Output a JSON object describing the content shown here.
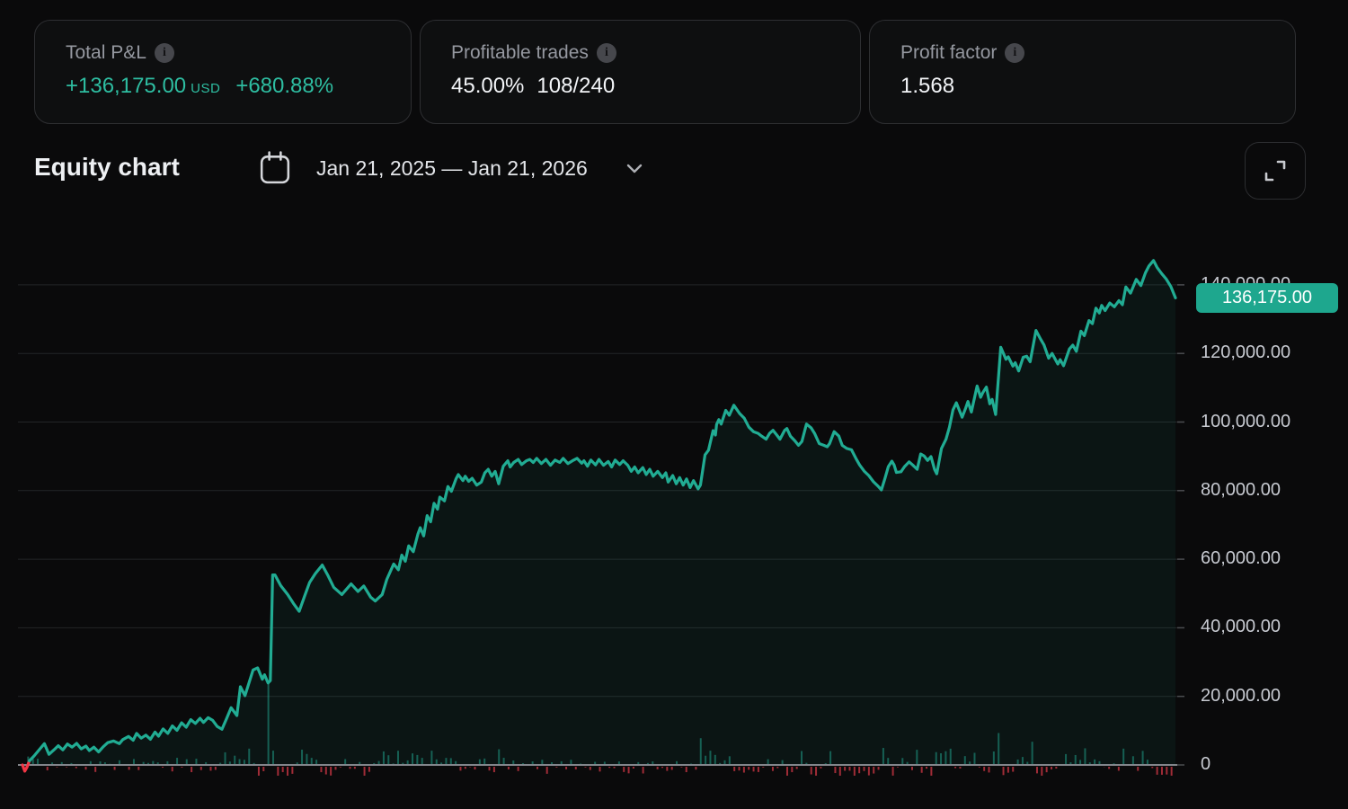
{
  "stats_cards": [
    {
      "label": "Total P&L",
      "value": "+136,175.00",
      "currency": "USD",
      "percent": "+680.88%"
    },
    {
      "label": "Profitable trades",
      "value": "45.00%",
      "ratio": "108/240"
    },
    {
      "label": "Profit factor",
      "value": "1.568"
    }
  ],
  "chart_header": {
    "title": "Equity chart",
    "date_range": "Jan 21, 2025 — Jan 21, 2026"
  },
  "chart_data": {
    "type": "line",
    "title": "Equity chart",
    "x_range": [
      "Jan 21, 2025",
      "Jan 21, 2026"
    ],
    "grid": true,
    "legend": "none",
    "y_axis": {
      "side": "right",
      "ticks": [
        {
          "value": 140000,
          "label": "140,000.00"
        },
        {
          "value": 120000,
          "label": "120,000.00"
        },
        {
          "value": 100000,
          "label": "100,000.00"
        },
        {
          "value": 80000,
          "label": "80,000.00"
        },
        {
          "value": 60000,
          "label": "60,000.00"
        },
        {
          "value": 40000,
          "label": "40,000.00"
        },
        {
          "value": 20000,
          "label": "20,000.00"
        },
        {
          "value": 0,
          "label": "0"
        }
      ]
    },
    "last_value": 136175,
    "last_value_label": "136,175.00",
    "colors": {
      "line": "#21ac93",
      "area": "rgba(34,171,148,0.07)",
      "badge": "#1ea78e",
      "negative": "#f23645",
      "bar_up": "rgba(34,171,148,0.5)",
      "bar_down": "rgba(176,48,60,0.9)",
      "grid": "#232527",
      "zero_line": "#a9acb3",
      "tick": "#4a4c50",
      "label": "#c7cad1"
    },
    "equity_curve": {
      "units": "USD",
      "red_prefix_points": 4,
      "points": [
        [
          0,
          0
        ],
        [
          0.002,
          -1800
        ],
        [
          0.004,
          -600
        ],
        [
          0.006,
          1200
        ],
        [
          0.01,
          2600
        ],
        [
          0.016,
          5000
        ],
        [
          0.019,
          6200
        ],
        [
          0.023,
          3100
        ],
        [
          0.027,
          4300
        ],
        [
          0.031,
          5600
        ],
        [
          0.035,
          4400
        ],
        [
          0.039,
          6100
        ],
        [
          0.043,
          5200
        ],
        [
          0.047,
          6300
        ],
        [
          0.051,
          4700
        ],
        [
          0.055,
          5500
        ],
        [
          0.058,
          4200
        ],
        [
          0.062,
          5200
        ],
        [
          0.066,
          3800
        ],
        [
          0.07,
          5300
        ],
        [
          0.074,
          6500
        ],
        [
          0.079,
          7000
        ],
        [
          0.084,
          6200
        ],
        [
          0.087,
          7400
        ],
        [
          0.092,
          8300
        ],
        [
          0.096,
          7200
        ],
        [
          0.099,
          9200
        ],
        [
          0.103,
          7800
        ],
        [
          0.107,
          8700
        ],
        [
          0.111,
          7500
        ],
        [
          0.115,
          9600
        ],
        [
          0.118,
          8400
        ],
        [
          0.122,
          10500
        ],
        [
          0.126,
          9200
        ],
        [
          0.13,
          11400
        ],
        [
          0.134,
          10100
        ],
        [
          0.138,
          12300
        ],
        [
          0.142,
          11000
        ],
        [
          0.146,
          13200
        ],
        [
          0.15,
          12100
        ],
        [
          0.154,
          13600
        ],
        [
          0.157,
          12400
        ],
        [
          0.161,
          13800
        ],
        [
          0.165,
          13000
        ],
        [
          0.169,
          11200
        ],
        [
          0.173,
          10400
        ],
        [
          0.177,
          13500
        ],
        [
          0.181,
          16700
        ],
        [
          0.186,
          14400
        ],
        [
          0.189,
          22800
        ],
        [
          0.193,
          20200
        ],
        [
          0.2,
          27700
        ],
        [
          0.204,
          28300
        ],
        [
          0.208,
          25000
        ],
        [
          0.21,
          26300
        ],
        [
          0.213,
          23900
        ],
        [
          0.215,
          24600
        ],
        [
          0.217,
          55400
        ],
        [
          0.219,
          55400
        ],
        [
          0.224,
          52300
        ],
        [
          0.23,
          49700
        ],
        [
          0.235,
          47100
        ],
        [
          0.24,
          44800
        ],
        [
          0.245,
          49500
        ],
        [
          0.249,
          53200
        ],
        [
          0.254,
          55800
        ],
        [
          0.26,
          58300
        ],
        [
          0.265,
          55200
        ],
        [
          0.27,
          51800
        ],
        [
          0.277,
          49700
        ],
        [
          0.285,
          52800
        ],
        [
          0.291,
          50600
        ],
        [
          0.296,
          52200
        ],
        [
          0.302,
          48900
        ],
        [
          0.306,
          47800
        ],
        [
          0.312,
          49700
        ],
        [
          0.316,
          54100
        ],
        [
          0.322,
          58600
        ],
        [
          0.326,
          56900
        ],
        [
          0.329,
          61200
        ],
        [
          0.332,
          59400
        ],
        [
          0.335,
          63900
        ],
        [
          0.339,
          62200
        ],
        [
          0.343,
          67400
        ],
        [
          0.345,
          69200
        ],
        [
          0.348,
          66800
        ],
        [
          0.351,
          72700
        ],
        [
          0.354,
          70900
        ],
        [
          0.357,
          76300
        ],
        [
          0.36,
          74600
        ],
        [
          0.362,
          78100
        ],
        [
          0.366,
          77000
        ],
        [
          0.369,
          81200
        ],
        [
          0.372,
          79800
        ],
        [
          0.376,
          83400
        ],
        [
          0.378,
          84700
        ],
        [
          0.382,
          82900
        ],
        [
          0.384,
          84200
        ],
        [
          0.387,
          82700
        ],
        [
          0.39,
          83600
        ],
        [
          0.394,
          81600
        ],
        [
          0.398,
          82500
        ],
        [
          0.401,
          85200
        ],
        [
          0.404,
          86200
        ],
        [
          0.407,
          84200
        ],
        [
          0.41,
          85600
        ],
        [
          0.413,
          82000
        ],
        [
          0.417,
          87100
        ],
        [
          0.421,
          88700
        ],
        [
          0.423,
          86900
        ],
        [
          0.426,
          88200
        ],
        [
          0.43,
          89100
        ],
        [
          0.433,
          87600
        ],
        [
          0.437,
          88700
        ],
        [
          0.44,
          89100
        ],
        [
          0.443,
          88200
        ],
        [
          0.446,
          89400
        ],
        [
          0.45,
          87900
        ],
        [
          0.454,
          89100
        ],
        [
          0.458,
          87400
        ],
        [
          0.462,
          88900
        ],
        [
          0.466,
          88200
        ],
        [
          0.469,
          89400
        ],
        [
          0.473,
          87900
        ],
        [
          0.477,
          88700
        ],
        [
          0.481,
          89400
        ],
        [
          0.485,
          88000
        ],
        [
          0.487,
          88700
        ],
        [
          0.49,
          87100
        ],
        [
          0.493,
          88900
        ],
        [
          0.497,
          87500
        ],
        [
          0.5,
          89100
        ],
        [
          0.504,
          87400
        ],
        [
          0.508,
          88500
        ],
        [
          0.511,
          86900
        ],
        [
          0.514,
          88900
        ],
        [
          0.518,
          87600
        ],
        [
          0.521,
          88700
        ],
        [
          0.525,
          87400
        ],
        [
          0.528,
          85600
        ],
        [
          0.531,
          86900
        ],
        [
          0.534,
          85200
        ],
        [
          0.538,
          86700
        ],
        [
          0.541,
          84700
        ],
        [
          0.544,
          86200
        ],
        [
          0.547,
          84200
        ],
        [
          0.551,
          85600
        ],
        [
          0.555,
          83800
        ],
        [
          0.558,
          85200
        ],
        [
          0.56,
          82500
        ],
        [
          0.564,
          84400
        ],
        [
          0.567,
          82000
        ],
        [
          0.57,
          83800
        ],
        [
          0.573,
          81600
        ],
        [
          0.576,
          83400
        ],
        [
          0.579,
          80900
        ],
        [
          0.582,
          82900
        ],
        [
          0.586,
          80500
        ],
        [
          0.588,
          81600
        ],
        [
          0.592,
          90400
        ],
        [
          0.595,
          91800
        ],
        [
          0.599,
          97500
        ],
        [
          0.601,
          96200
        ],
        [
          0.602,
          99300
        ],
        [
          0.604,
          100700
        ],
        [
          0.606,
          99400
        ],
        [
          0.61,
          103400
        ],
        [
          0.613,
          102000
        ],
        [
          0.617,
          104900
        ],
        [
          0.622,
          102500
        ],
        [
          0.626,
          101100
        ],
        [
          0.63,
          98500
        ],
        [
          0.634,
          97200
        ],
        [
          0.638,
          96700
        ],
        [
          0.641,
          95900
        ],
        [
          0.645,
          95000
        ],
        [
          0.648,
          96700
        ],
        [
          0.651,
          97600
        ],
        [
          0.654,
          96300
        ],
        [
          0.657,
          95000
        ],
        [
          0.661,
          97600
        ],
        [
          0.663,
          98100
        ],
        [
          0.666,
          95900
        ],
        [
          0.67,
          94500
        ],
        [
          0.673,
          93200
        ],
        [
          0.676,
          94300
        ],
        [
          0.68,
          99400
        ],
        [
          0.684,
          98300
        ],
        [
          0.687,
          96700
        ],
        [
          0.691,
          93700
        ],
        [
          0.695,
          93200
        ],
        [
          0.698,
          92800
        ],
        [
          0.7,
          93700
        ],
        [
          0.704,
          97200
        ],
        [
          0.708,
          95900
        ],
        [
          0.711,
          93200
        ],
        [
          0.715,
          92300
        ],
        [
          0.719,
          91900
        ],
        [
          0.723,
          89300
        ],
        [
          0.726,
          87500
        ],
        [
          0.73,
          85700
        ],
        [
          0.734,
          84400
        ],
        [
          0.738,
          82600
        ],
        [
          0.742,
          81300
        ],
        [
          0.745,
          80200
        ],
        [
          0.748,
          83500
        ],
        [
          0.751,
          87000
        ],
        [
          0.754,
          88600
        ],
        [
          0.756,
          87500
        ],
        [
          0.758,
          85300
        ],
        [
          0.762,
          85500
        ],
        [
          0.765,
          87000
        ],
        [
          0.769,
          88400
        ],
        [
          0.772,
          87500
        ],
        [
          0.776,
          86200
        ],
        [
          0.779,
          90700
        ],
        [
          0.782,
          90100
        ],
        [
          0.785,
          88800
        ],
        [
          0.788,
          89900
        ],
        [
          0.791,
          86200
        ],
        [
          0.793,
          84900
        ],
        [
          0.797,
          92300
        ],
        [
          0.801,
          95000
        ],
        [
          0.804,
          98500
        ],
        [
          0.807,
          103500
        ],
        [
          0.81,
          105600
        ],
        [
          0.815,
          101400
        ],
        [
          0.818,
          104000
        ],
        [
          0.82,
          106000
        ],
        [
          0.823,
          102900
        ],
        [
          0.828,
          110500
        ],
        [
          0.831,
          107200
        ],
        [
          0.833,
          108600
        ],
        [
          0.836,
          110200
        ],
        [
          0.839,
          105300
        ],
        [
          0.841,
          106600
        ],
        [
          0.844,
          102200
        ],
        [
          0.8485,
          121800
        ],
        [
          0.853,
          118300
        ],
        [
          0.855,
          119000
        ],
        [
          0.859,
          116300
        ],
        [
          0.861,
          117300
        ],
        [
          0.864,
          114900
        ],
        [
          0.868,
          118900
        ],
        [
          0.871,
          119200
        ],
        [
          0.874,
          117600
        ],
        [
          0.879,
          126700
        ],
        [
          0.883,
          124200
        ],
        [
          0.886,
          122500
        ],
        [
          0.89,
          118600
        ],
        [
          0.893,
          120000
        ],
        [
          0.898,
          116900
        ],
        [
          0.9,
          118200
        ],
        [
          0.903,
          116400
        ],
        [
          0.908,
          121300
        ],
        [
          0.911,
          122400
        ],
        [
          0.914,
          120600
        ],
        [
          0.918,
          126500
        ],
        [
          0.921,
          125200
        ],
        [
          0.925,
          129600
        ],
        [
          0.928,
          128700
        ],
        [
          0.931,
          133200
        ],
        [
          0.934,
          131800
        ],
        [
          0.936,
          134000
        ],
        [
          0.939,
          132500
        ],
        [
          0.943,
          134700
        ],
        [
          0.947,
          133600
        ],
        [
          0.951,
          135400
        ],
        [
          0.954,
          134200
        ],
        [
          0.957,
          139400
        ],
        [
          0.961,
          137600
        ],
        [
          0.966,
          141600
        ],
        [
          0.97,
          139800
        ],
        [
          0.974,
          143500
        ],
        [
          0.977,
          145500
        ],
        [
          0.981,
          147100
        ],
        [
          0.984,
          145100
        ],
        [
          0.988,
          143300
        ],
        [
          0.992,
          141700
        ],
        [
          0.996,
          139500
        ],
        [
          1,
          136200
        ]
      ]
    },
    "trade_bars": {
      "count": 240,
      "wins": 108,
      "seed": 11,
      "noise_shift": 0.58,
      "noise_scale": 1500,
      "min_show": 50,
      "down_cap": 2600
    }
  }
}
